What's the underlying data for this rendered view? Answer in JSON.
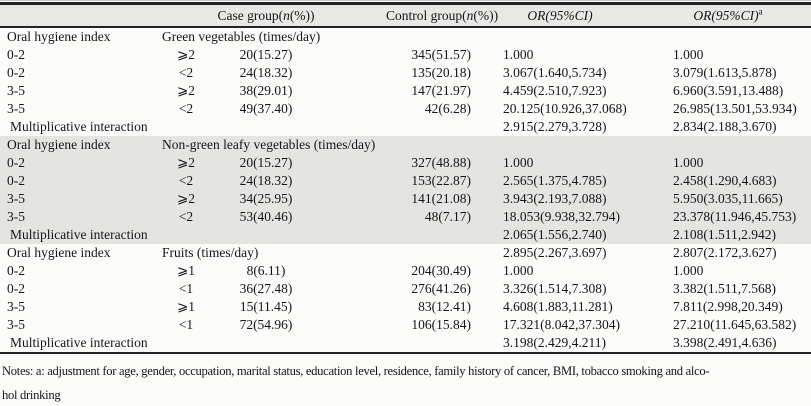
{
  "table": {
    "headers": [
      {
        "text": "",
        "name": "blank-row-label"
      },
      {
        "text": "",
        "name": "blank-exposure"
      },
      {
        "pre": "Case group(",
        "italic": "n",
        "post": "(%))",
        "name": "case-group"
      },
      {
        "pre": "Control group(",
        "italic": "n",
        "post": "(%))",
        "name": "control-group"
      },
      {
        "italic_full": "OR(95%CI)",
        "sup": "",
        "name": "or-crude"
      },
      {
        "italic_full": "OR(95%CI)",
        "sup": "a",
        "name": "or-adjusted"
      }
    ],
    "sections": [
      {
        "group_label": "Oral hygiene index",
        "exposure_label": "Green vegetables (times/day)",
        "shaded": false,
        "header_or": [
          "",
          ""
        ],
        "rows": [
          [
            "0-2",
            "⩾2",
            "20(15.27)",
            "345(51.57)",
            "1.000",
            "1.000"
          ],
          [
            "0-2",
            "<2",
            "24(18.32)",
            "135(20.18)",
            "3.067(1.640,5.734)",
            "3.079(1.613,5.878)"
          ],
          [
            "3-5",
            "⩾2",
            "38(29.01)",
            "147(21.97)",
            "4.459(2.510,7.923)",
            "6.960(3.591,13.488)"
          ],
          [
            "3-5",
            "<2",
            "49(37.40)",
            "42(6.28)",
            "20.125(10.926,37.068)",
            "26.985(13.501,53.934)"
          ]
        ],
        "interaction": [
          "Multiplicative interaction",
          "2.915(2.279,3.728)",
          "2.834(2.188,3.670)"
        ]
      },
      {
        "group_label": "Oral hygiene index",
        "exposure_label": "Non-green leafy vegetables (times/day)",
        "shaded": true,
        "header_or": [
          "",
          ""
        ],
        "rows": [
          [
            "0-2",
            "⩾2",
            "20(15.27)",
            "327(48.88)",
            "1.000",
            "1.000"
          ],
          [
            "0-2",
            "<2",
            "24(18.32)",
            "153(22.87)",
            "2.565(1.375,4.785)",
            "2.458(1.290,4.683)"
          ],
          [
            "3-5",
            "⩾2",
            "34(25.95)",
            "141(21.08)",
            "3.943(2.193,7.088)",
            "5.950(3.035,11.665)"
          ],
          [
            "3-5",
            "<2",
            "53(40.46)",
            "48(7.17)",
            "18.053(9.938,32.794)",
            "23.378(11.946,45.753)"
          ]
        ],
        "interaction": [
          "Multiplicative interaction",
          "2.065(1.556,2.740)",
          "2.108(1.511,2.942)"
        ]
      },
      {
        "group_label": "Oral hygiene index",
        "exposure_label": "Fruits (times/day)",
        "shaded": false,
        "header_or": [
          "2.895(2.267,3.697)",
          "2.807(2.172,3.627)"
        ],
        "rows": [
          [
            "0-2",
            "⩾1",
            "8(6.11)",
            "204(30.49)",
            "1.000",
            "1.000"
          ],
          [
            "0-2",
            "<1",
            "36(27.48)",
            "276(41.26)",
            "3.326(1.514,7.308)",
            "3.382(1.511,7.568)"
          ],
          [
            "3-5",
            "⩾1",
            "15(11.45)",
            "83(12.41)",
            "4.608(1.883,11.281)",
            "7.811(2.998,20.349)"
          ],
          [
            "3-5",
            "<1",
            "72(54.96)",
            "106(15.84)",
            "17.321(8.042,37.304)",
            "27.210(11.645,63.582)"
          ]
        ],
        "interaction": [
          "Multiplicative interaction",
          "3.198(2.429,4.211)",
          "3.398(2.491,4.636)"
        ]
      }
    ]
  },
  "notes": {
    "line1": "Notes: a: adjustment for age, gender, occupation, marital  status, education level, residence, family history of cancer, BMI, tobacco smoking and alco-",
    "line2": "hol drinking"
  }
}
